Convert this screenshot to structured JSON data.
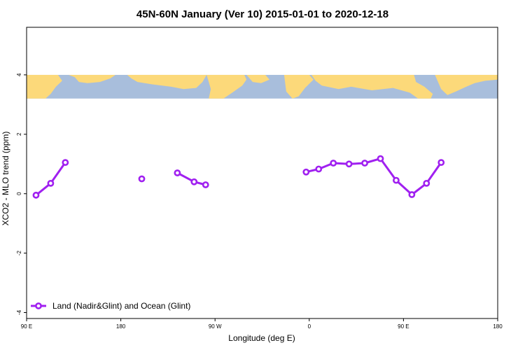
{
  "chart_data": {
    "type": "line",
    "title": "45N-60N January (Ver 10)   2015-01-01 to 2020-12-18",
    "xlabel": "Longitude (deg E)",
    "ylabel": "XCO2 - MLO trend (ppm)",
    "xlim": [
      90,
      540
    ],
    "ylim": [
      -4.2,
      5.6
    ],
    "x_ticks": [
      {
        "value": 90,
        "label": "90 E"
      },
      {
        "value": 180,
        "label": "180"
      },
      {
        "value": 270,
        "label": "90 W"
      },
      {
        "value": 360,
        "label": "0"
      },
      {
        "value": 450,
        "label": "90 E"
      },
      {
        "value": 540,
        "label": "180"
      }
    ],
    "y_ticks": [
      {
        "value": -4,
        "label": "-4"
      },
      {
        "value": -2,
        "label": "-2"
      },
      {
        "value": 0,
        "label": "0"
      },
      {
        "value": 2,
        "label": "2"
      },
      {
        "value": 4,
        "label": "4"
      }
    ],
    "map_band": {
      "y_from": 3.2,
      "y_to": 4.0,
      "ocean_color": "#a8bedc",
      "land_color": "#fcd97a"
    },
    "legend": {
      "position": "bottom-left"
    },
    "series": [
      {
        "name": "Land (Nadir&Glint) and Ocean (Glint)",
        "color": "#a020f0",
        "segments": [
          [
            [
              99,
              -0.05
            ],
            [
              113,
              0.35
            ],
            [
              127,
              1.05
            ]
          ],
          [
            [
              200,
              0.5
            ]
          ],
          [
            [
              234,
              0.7
            ],
            [
              250,
              0.4
            ],
            [
              261,
              0.3
            ]
          ],
          [
            [
              357,
              0.73
            ],
            [
              369,
              0.83
            ],
            [
              383,
              1.03
            ],
            [
              398,
              1.0
            ],
            [
              413,
              1.03
            ],
            [
              428,
              1.18
            ],
            [
              443,
              0.45
            ],
            [
              458,
              -0.03
            ],
            [
              472,
              0.35
            ],
            [
              486,
              1.05
            ]
          ]
        ]
      }
    ]
  }
}
